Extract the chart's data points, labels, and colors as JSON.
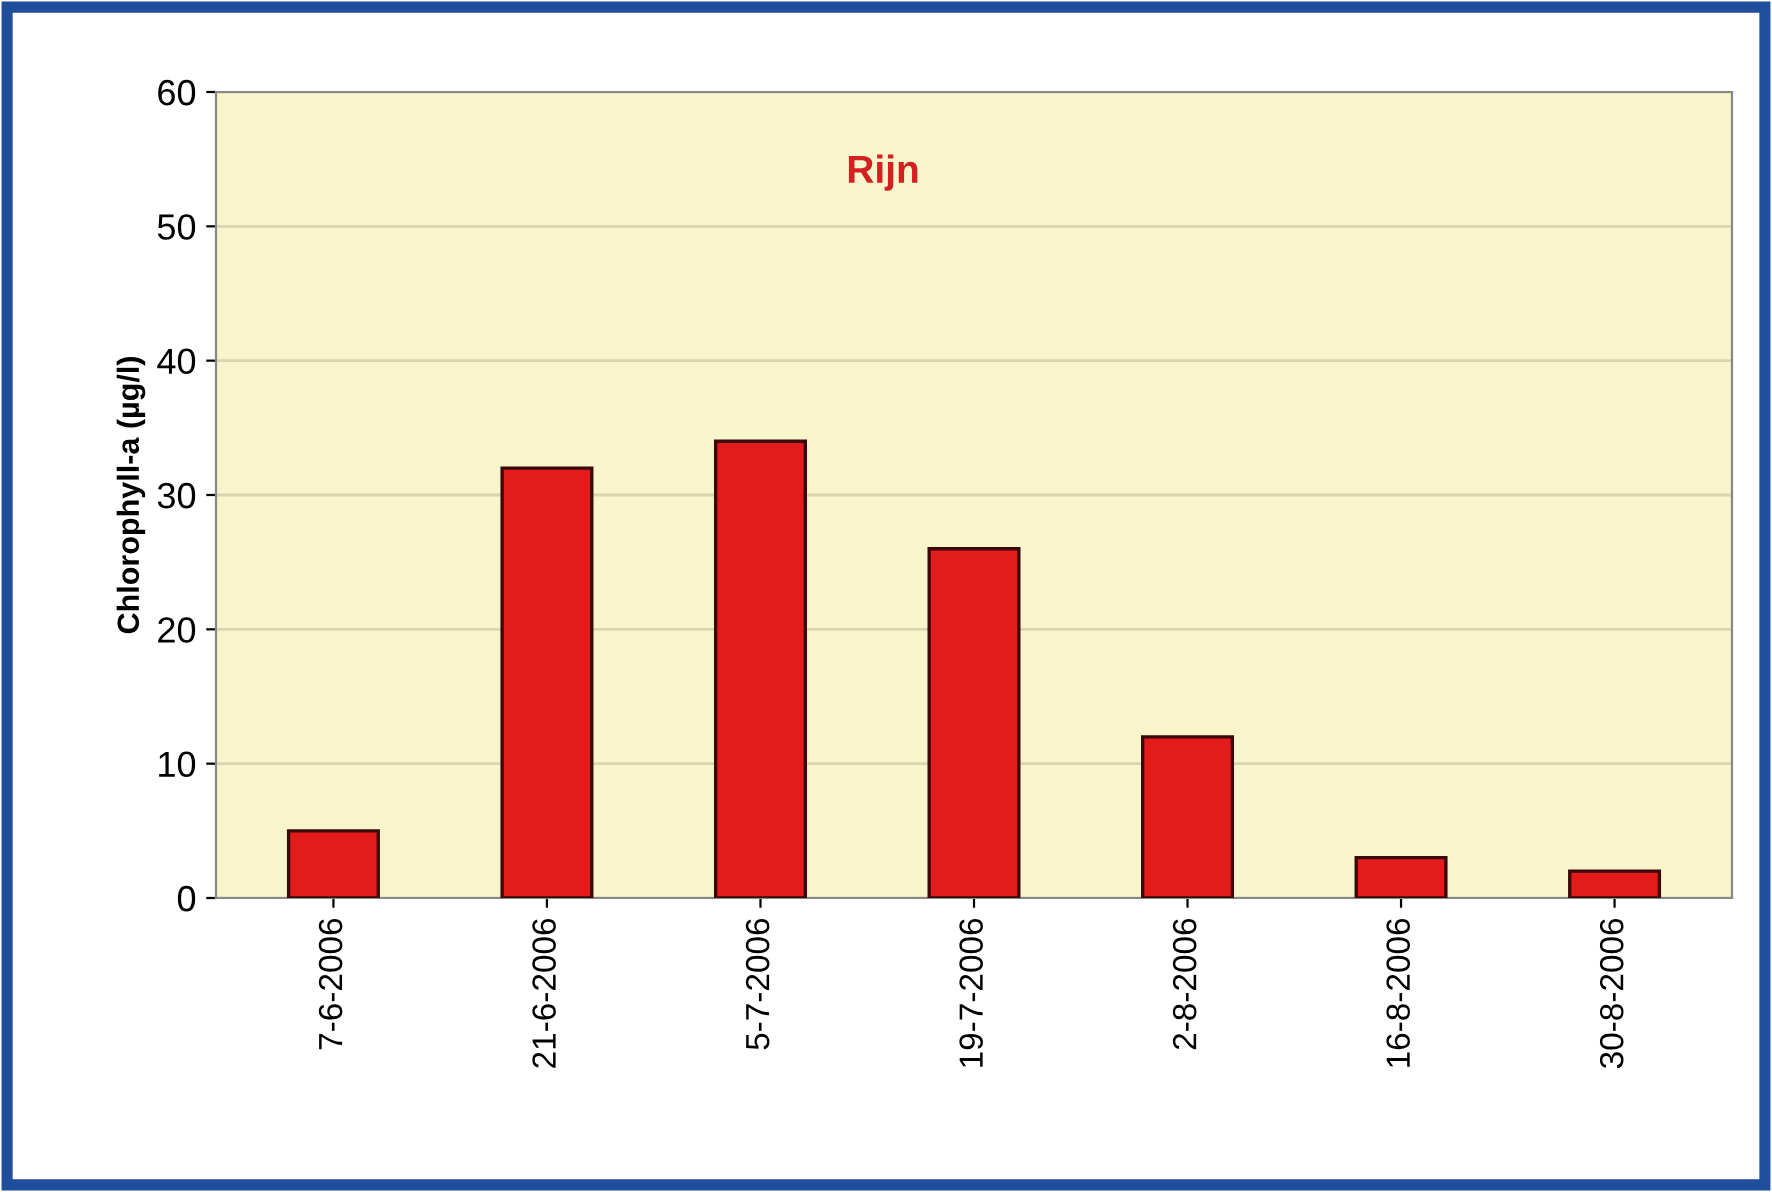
{
  "chart_data": {
    "type": "bar",
    "title": "Rijn",
    "ylabel": "Chlorophyll-a (µg/l)",
    "categories": [
      "7-6-2006",
      "21-6-2006",
      "5-7-2006",
      "19-7-2006",
      "2-8-2006",
      "16-8-2006",
      "30-8-2006"
    ],
    "values": [
      5,
      32,
      34,
      26,
      12,
      3,
      2
    ],
    "color": "#e31b1b",
    "ylim": [
      0,
      60
    ],
    "yticks": [
      0,
      10,
      20,
      30,
      40,
      50,
      60
    ],
    "grid": "y",
    "legend": false
  }
}
